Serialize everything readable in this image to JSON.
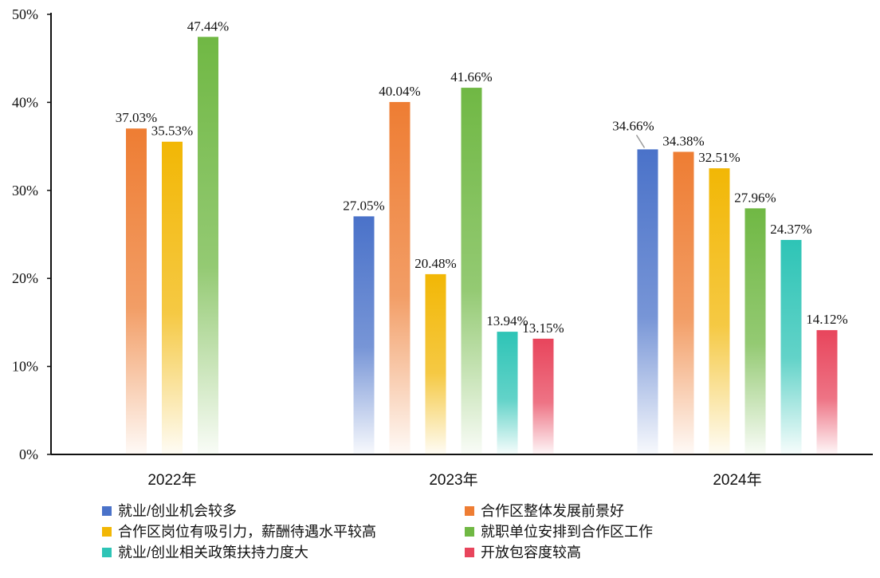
{
  "chart_data": {
    "type": "bar",
    "title": "",
    "xlabel": "",
    "ylabel": "",
    "ylim": [
      0,
      50
    ],
    "y_ticks": [
      0,
      10,
      20,
      30,
      40,
      50
    ],
    "y_tick_labels": [
      "0%",
      "10%",
      "20%",
      "30%",
      "40%",
      "50%"
    ],
    "grid": false,
    "legend_position": "bottom",
    "categories": [
      "2022年",
      "2023年",
      "2024年"
    ],
    "series": [
      {
        "name": "就业/创业机会较多",
        "color": "#4a72c9",
        "values": [
          null,
          27.05,
          34.66
        ],
        "labels": [
          "",
          "27.05%",
          "34.66%"
        ]
      },
      {
        "name": "合作区整体发展前景好",
        "color": "#ee7d33",
        "values": [
          37.03,
          40.04,
          34.38
        ],
        "labels": [
          "37.03%",
          "40.04%",
          "34.38%"
        ]
      },
      {
        "name": "合作区岗位有吸引力，薪酬待遇水平较高",
        "color": "#f2b705",
        "values": [
          35.53,
          20.48,
          32.51
        ],
        "labels": [
          "35.53%",
          "20.48%",
          "32.51%"
        ]
      },
      {
        "name": "就职单位安排到合作区工作",
        "color": "#70b844",
        "values": [
          47.44,
          41.66,
          27.96
        ],
        "labels": [
          "47.44%",
          "41.66%",
          "27.96%"
        ]
      },
      {
        "name": "就业/创业相关政策扶持力度大",
        "color": "#2ec4b6",
        "values": [
          null,
          13.94,
          24.37
        ],
        "labels": [
          "",
          "13.94%",
          "24.37%"
        ]
      },
      {
        "name": "开放包容度较高",
        "color": "#e8455c",
        "values": [
          null,
          13.15,
          14.12
        ],
        "labels": [
          "",
          "13.15%",
          "14.12%"
        ]
      }
    ]
  }
}
